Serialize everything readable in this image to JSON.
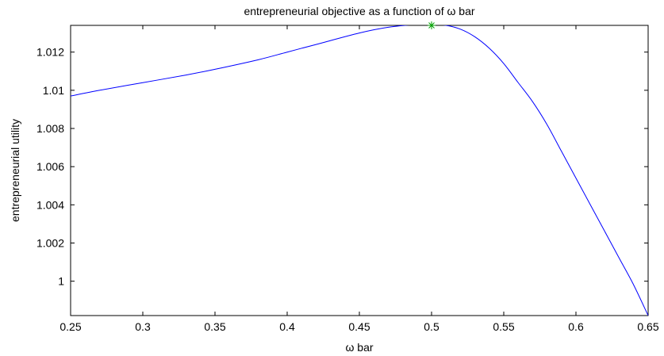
{
  "chart_data": {
    "type": "line",
    "title": "entrepreneurial objective as a function of ω bar",
    "xlabel": "ω bar",
    "ylabel": "entrepreneurial utility",
    "xlim": [
      0.25,
      0.65
    ],
    "ylim": [
      0.9982,
      1.0134
    ],
    "xticks": [
      0.25,
      0.3,
      0.35,
      0.4,
      0.45,
      0.5,
      0.55,
      0.6,
      0.65
    ],
    "xtick_labels": [
      "0.25",
      "0.3",
      "0.35",
      "0.4",
      "0.45",
      "0.5",
      "0.55",
      "0.6",
      "0.65"
    ],
    "yticks": [
      1.0,
      1.002,
      1.004,
      1.006,
      1.008,
      1.01,
      1.012
    ],
    "ytick_labels": [
      "1",
      "1.002",
      "1.004",
      "1.006",
      "1.008",
      "1.01",
      "1.012"
    ],
    "grid": false,
    "series": [
      {
        "color": "#0000ff",
        "x": [
          0.25,
          0.27,
          0.3,
          0.33,
          0.35,
          0.38,
          0.4,
          0.42,
          0.45,
          0.47,
          0.49,
          0.5,
          0.51,
          0.52,
          0.53,
          0.54,
          0.55,
          0.56,
          0.57,
          0.58,
          0.59,
          0.6,
          0.61,
          0.62,
          0.63,
          0.64,
          0.65
        ],
        "y": [
          1.0097,
          1.01,
          1.0104,
          1.0108,
          1.0111,
          1.0116,
          1.012,
          1.0124,
          1.013,
          1.0133,
          1.01345,
          1.01345,
          1.0134,
          1.0132,
          1.0128,
          1.0122,
          1.0114,
          1.0104,
          1.0094,
          1.0082,
          1.0068,
          1.0054,
          1.004,
          1.0026,
          1.0012,
          0.9998,
          0.9982
        ]
      }
    ],
    "marker": {
      "x": 0.5,
      "y": 1.0134,
      "symbol": "*",
      "color": "#00a000"
    }
  }
}
